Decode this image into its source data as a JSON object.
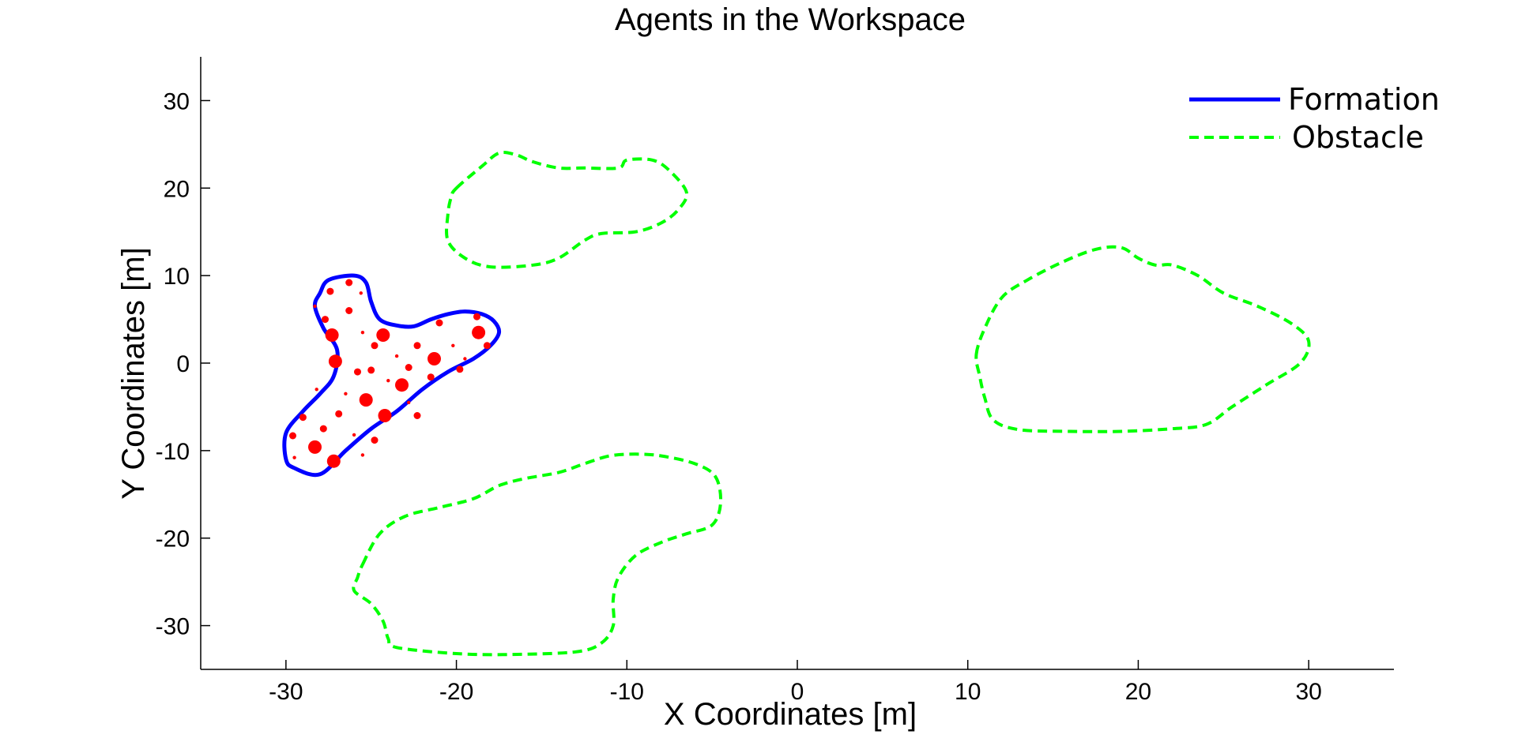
{
  "chart_data": {
    "type": "scatter",
    "title": "Agents in the Workspace",
    "xlabel": "X Coordinates [m]",
    "ylabel": "Y Coordinates [m]",
    "xlim": [
      -35,
      35
    ],
    "ylim": [
      -35,
      35
    ],
    "xticks": [
      -30,
      -20,
      -10,
      0,
      10,
      20,
      30
    ],
    "yticks": [
      -30,
      -20,
      -10,
      0,
      10,
      20,
      30
    ],
    "grid": false,
    "legend_position": "top-right",
    "legend": [
      {
        "label": "Formation",
        "style": "solid",
        "color": "#0000ff"
      },
      {
        "label": "Obstacle",
        "style": "dashed",
        "color": "#00ff00"
      }
    ],
    "formation": {
      "name": "Formation",
      "color": "#0000ff",
      "points": [
        [
          -28.0,
          8.0
        ],
        [
          -27.5,
          9.5
        ],
        [
          -26.0,
          10.0
        ],
        [
          -25.3,
          9.2
        ],
        [
          -25.0,
          7.0
        ],
        [
          -24.5,
          5.0
        ],
        [
          -23.5,
          4.3
        ],
        [
          -22.5,
          4.2
        ],
        [
          -21.5,
          5.0
        ],
        [
          -20.5,
          5.6
        ],
        [
          -19.5,
          5.9
        ],
        [
          -18.5,
          5.6
        ],
        [
          -17.8,
          4.8
        ],
        [
          -17.5,
          3.5
        ],
        [
          -18.0,
          2.0
        ],
        [
          -19.0,
          0.5
        ],
        [
          -20.5,
          -1.0
        ],
        [
          -22.0,
          -3.0
        ],
        [
          -23.5,
          -5.5
        ],
        [
          -25.0,
          -7.5
        ],
        [
          -26.5,
          -10.0
        ],
        [
          -28.0,
          -12.7
        ],
        [
          -29.5,
          -12.0
        ],
        [
          -30.0,
          -11.0
        ],
        [
          -30.0,
          -8.0
        ],
        [
          -29.0,
          -5.5
        ],
        [
          -28.0,
          -3.5
        ],
        [
          -27.2,
          -1.5
        ],
        [
          -27.0,
          1.5
        ],
        [
          -27.8,
          4.0
        ],
        [
          -28.3,
          6.5
        ]
      ]
    },
    "agents": {
      "color": "#ff0000",
      "points": [
        {
          "x": -27.4,
          "y": 8.2,
          "size": "s"
        },
        {
          "x": -26.3,
          "y": 9.2,
          "size": "s"
        },
        {
          "x": -25.6,
          "y": 8.0,
          "size": "xs"
        },
        {
          "x": -28.3,
          "y": 6.5,
          "size": "xs"
        },
        {
          "x": -27.7,
          "y": 5.0,
          "size": "s"
        },
        {
          "x": -26.3,
          "y": 6.0,
          "size": "s"
        },
        {
          "x": -27.3,
          "y": 3.2,
          "size": "l"
        },
        {
          "x": -25.5,
          "y": 3.5,
          "size": "xs"
        },
        {
          "x": -24.8,
          "y": 2.0,
          "size": "s"
        },
        {
          "x": -24.3,
          "y": 3.2,
          "size": "l"
        },
        {
          "x": -22.3,
          "y": 2.0,
          "size": "s"
        },
        {
          "x": -21.0,
          "y": 4.6,
          "size": "s"
        },
        {
          "x": -20.2,
          "y": 2.0,
          "size": "xs"
        },
        {
          "x": -18.8,
          "y": 5.3,
          "size": "s"
        },
        {
          "x": -18.7,
          "y": 3.5,
          "size": "l"
        },
        {
          "x": -18.2,
          "y": 2.0,
          "size": "s"
        },
        {
          "x": -19.5,
          "y": 0.5,
          "size": "xs"
        },
        {
          "x": -27.1,
          "y": 0.2,
          "size": "l"
        },
        {
          "x": -25.8,
          "y": -1.0,
          "size": "s"
        },
        {
          "x": -25.0,
          "y": -0.8,
          "size": "s"
        },
        {
          "x": -23.5,
          "y": 0.8,
          "size": "xs"
        },
        {
          "x": -22.8,
          "y": -0.5,
          "size": "s"
        },
        {
          "x": -21.3,
          "y": 0.5,
          "size": "l"
        },
        {
          "x": -19.8,
          "y": -0.7,
          "size": "s"
        },
        {
          "x": -21.5,
          "y": -1.6,
          "size": "s"
        },
        {
          "x": -23.2,
          "y": -2.5,
          "size": "l"
        },
        {
          "x": -24.0,
          "y": -2.0,
          "size": "xs"
        },
        {
          "x": -28.2,
          "y": -3.0,
          "size": "xs"
        },
        {
          "x": -25.3,
          "y": -4.2,
          "size": "l"
        },
        {
          "x": -26.5,
          "y": -3.5,
          "size": "xs"
        },
        {
          "x": -22.8,
          "y": -4.5,
          "size": "xs"
        },
        {
          "x": -24.2,
          "y": -6.0,
          "size": "l"
        },
        {
          "x": -26.9,
          "y": -5.8,
          "size": "s"
        },
        {
          "x": -27.8,
          "y": -7.5,
          "size": "s"
        },
        {
          "x": -29.0,
          "y": -6.2,
          "size": "s"
        },
        {
          "x": -22.3,
          "y": -6.0,
          "size": "s"
        },
        {
          "x": -24.8,
          "y": -8.8,
          "size": "s"
        },
        {
          "x": -26.0,
          "y": -8.2,
          "size": "xs"
        },
        {
          "x": -29.6,
          "y": -8.3,
          "size": "s"
        },
        {
          "x": -28.3,
          "y": -9.6,
          "size": "l"
        },
        {
          "x": -27.2,
          "y": -11.2,
          "size": "l"
        },
        {
          "x": -29.5,
          "y": -10.8,
          "size": "xs"
        },
        {
          "x": -25.5,
          "y": -10.5,
          "size": "xs"
        }
      ]
    },
    "obstacles": [
      {
        "name": "Obstacle",
        "color": "#00ff00",
        "points": [
          [
            -20.0,
            20.0
          ],
          [
            -18.5,
            22.5
          ],
          [
            -17.5,
            24.0
          ],
          [
            -16.5,
            23.8
          ],
          [
            -15.5,
            23.0
          ],
          [
            -14.0,
            22.3
          ],
          [
            -12.5,
            22.3
          ],
          [
            -10.5,
            22.3
          ],
          [
            -10.0,
            23.2
          ],
          [
            -8.5,
            23.2
          ],
          [
            -7.5,
            22.0
          ],
          [
            -6.5,
            19.5
          ],
          [
            -7.0,
            17.5
          ],
          [
            -8.0,
            16.0
          ],
          [
            -9.5,
            15.0
          ],
          [
            -11.5,
            14.8
          ],
          [
            -12.5,
            14.0
          ],
          [
            -14.0,
            12.0
          ],
          [
            -15.5,
            11.2
          ],
          [
            -18.0,
            11.0
          ],
          [
            -19.5,
            12.0
          ],
          [
            -20.5,
            14.0
          ],
          [
            -20.5,
            17.0
          ],
          [
            -20.3,
            19.0
          ]
        ]
      },
      {
        "name": "Obstacle",
        "color": "#00ff00",
        "points": [
          [
            10.5,
            1.0
          ],
          [
            11.0,
            4.0
          ],
          [
            12.0,
            7.5
          ],
          [
            13.5,
            9.5
          ],
          [
            15.5,
            11.5
          ],
          [
            17.5,
            13.0
          ],
          [
            19.0,
            13.2
          ],
          [
            20.0,
            12.0
          ],
          [
            21.0,
            11.2
          ],
          [
            22.0,
            11.2
          ],
          [
            23.5,
            10.0
          ],
          [
            25.0,
            8.0
          ],
          [
            27.0,
            6.5
          ],
          [
            29.0,
            4.5
          ],
          [
            30.0,
            2.5
          ],
          [
            29.5,
            0.0
          ],
          [
            27.5,
            -2.5
          ],
          [
            25.5,
            -5.0
          ],
          [
            24.0,
            -7.0
          ],
          [
            22.0,
            -7.5
          ],
          [
            19.0,
            -7.8
          ],
          [
            16.0,
            -7.8
          ],
          [
            13.0,
            -7.6
          ],
          [
            11.5,
            -6.5
          ],
          [
            11.0,
            -4.0
          ],
          [
            10.7,
            -1.5
          ]
        ]
      },
      {
        "name": "Obstacle",
        "color": "#00ff00",
        "points": [
          [
            -25.5,
            -23.0
          ],
          [
            -24.5,
            -19.5
          ],
          [
            -23.0,
            -17.5
          ],
          [
            -21.0,
            -16.5
          ],
          [
            -19.0,
            -15.5
          ],
          [
            -17.5,
            -14.0
          ],
          [
            -16.0,
            -13.2
          ],
          [
            -14.0,
            -12.5
          ],
          [
            -12.5,
            -11.5
          ],
          [
            -11.0,
            -10.6
          ],
          [
            -9.5,
            -10.4
          ],
          [
            -8.0,
            -10.6
          ],
          [
            -6.0,
            -11.5
          ],
          [
            -4.8,
            -13.0
          ],
          [
            -4.5,
            -16.0
          ],
          [
            -5.0,
            -18.5
          ],
          [
            -6.5,
            -19.5
          ],
          [
            -8.0,
            -20.5
          ],
          [
            -9.5,
            -22.0
          ],
          [
            -10.5,
            -24.5
          ],
          [
            -10.8,
            -27.0
          ],
          [
            -10.8,
            -30.0
          ],
          [
            -11.5,
            -32.0
          ],
          [
            -13.0,
            -33.0
          ],
          [
            -17.0,
            -33.3
          ],
          [
            -20.0,
            -33.2
          ],
          [
            -23.5,
            -32.5
          ],
          [
            -24.0,
            -31.5
          ],
          [
            -24.3,
            -29.5
          ],
          [
            -25.0,
            -27.5
          ],
          [
            -26.0,
            -26.0
          ],
          [
            -25.8,
            -24.5
          ]
        ]
      }
    ]
  }
}
